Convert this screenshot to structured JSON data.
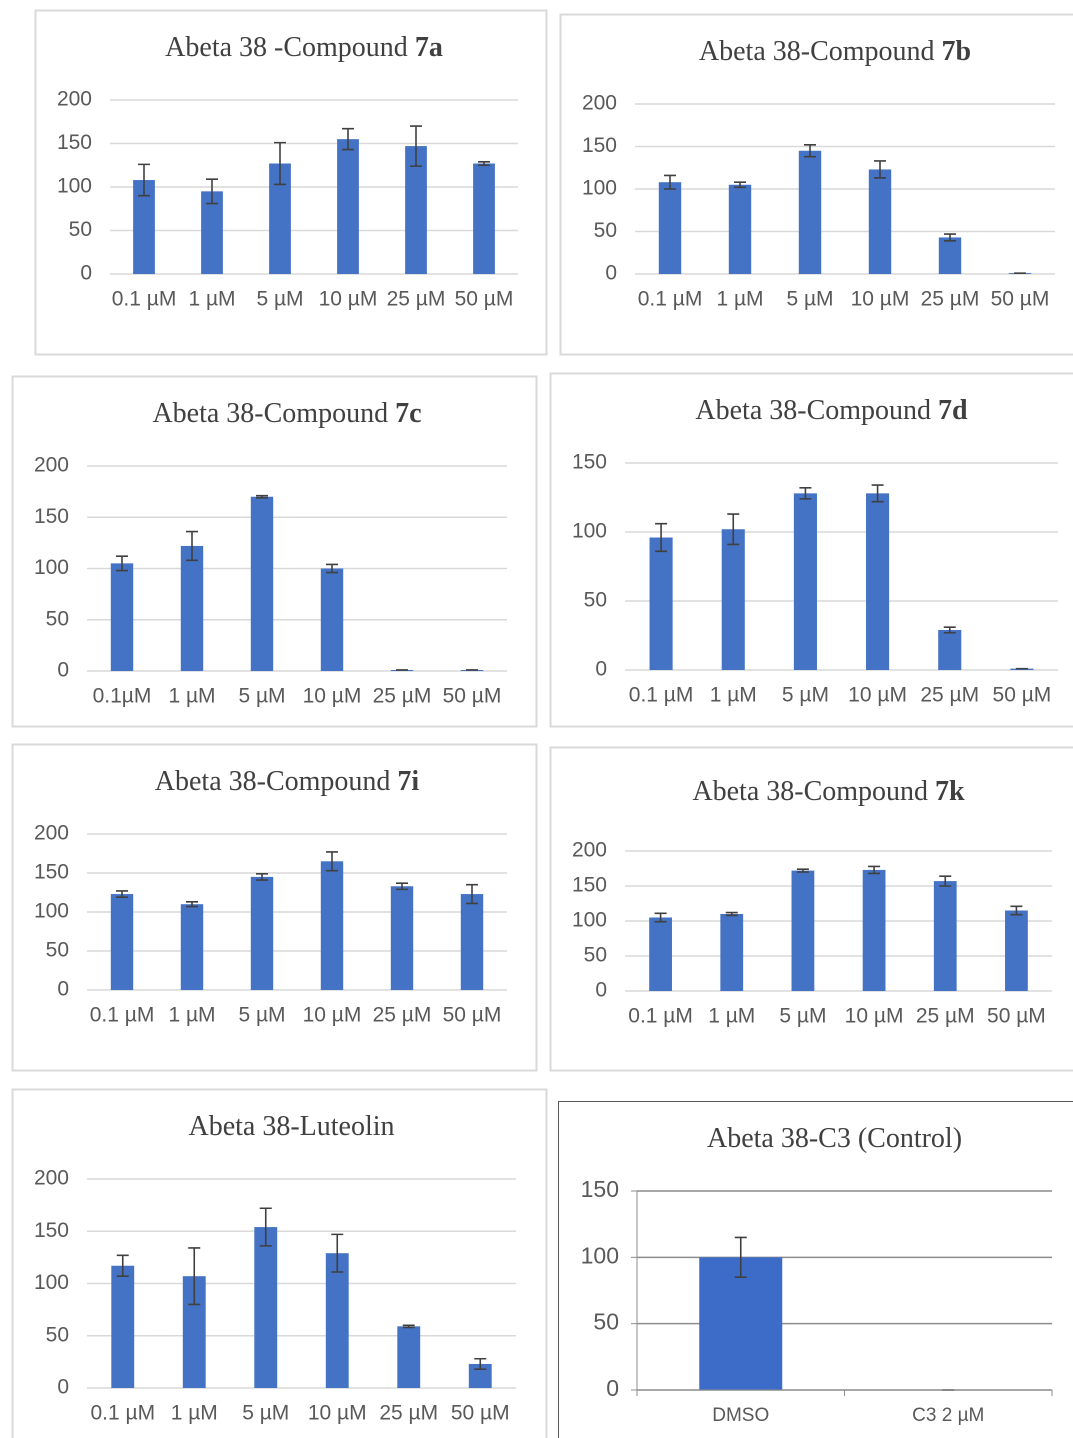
{
  "chart_data": [
    {
      "type": "bar",
      "title": "Abeta 38 -Compound",
      "title_suffix": "7a",
      "categories": [
        "0.1 µM",
        "1 µM",
        "5 µM",
        "10 µM",
        "25 µM",
        "50 µM"
      ],
      "values": [
        108,
        95,
        127,
        155,
        147,
        127
      ],
      "errors": [
        18,
        14,
        24,
        12,
        23,
        2
      ],
      "color": "#4472c4",
      "ylim": [
        0,
        200
      ],
      "yticks": [
        0,
        50,
        100,
        150,
        200
      ],
      "grid": true
    },
    {
      "type": "bar",
      "title": "Abeta 38-Compound",
      "title_suffix": "7b",
      "categories": [
        "0.1 µM",
        "1 µM",
        "5 µM",
        "10 µM",
        "25 µM",
        "50 µM"
      ],
      "values": [
        108,
        105,
        145,
        123,
        43,
        1
      ],
      "errors": [
        8,
        3,
        7,
        10,
        4,
        0
      ],
      "color": "#4472c4",
      "ylim": [
        0,
        200
      ],
      "yticks": [
        0,
        50,
        100,
        150,
        200
      ],
      "grid": true
    },
    {
      "type": "bar",
      "title": "Abeta 38-Compound",
      "title_suffix": "7c",
      "categories": [
        "0.1µM",
        "1 µM",
        "5 µM",
        "10 µM",
        "25 µM",
        "50 µM"
      ],
      "values": [
        105,
        122,
        170,
        100,
        1,
        1
      ],
      "errors": [
        7,
        14,
        1,
        4,
        0,
        0
      ],
      "color": "#4472c4",
      "ylim": [
        0,
        200
      ],
      "yticks": [
        0,
        50,
        100,
        150,
        200
      ],
      "grid": true
    },
    {
      "type": "bar",
      "title": "Abeta 38-Compound",
      "title_suffix": "7d",
      "categories": [
        "0.1 µM",
        "1 µM",
        "5 µM",
        "10 µM",
        "25 µM",
        "50 µM"
      ],
      "values": [
        96,
        102,
        128,
        128,
        29,
        1
      ],
      "errors": [
        10,
        11,
        4,
        6,
        2,
        0
      ],
      "color": "#4472c4",
      "ylim": [
        0,
        150
      ],
      "yticks": [
        0,
        50,
        100,
        150
      ],
      "grid": true
    },
    {
      "type": "bar",
      "title": "Abeta 38-Compound",
      "title_suffix": "7i",
      "categories": [
        "0.1 µM",
        "1 µM",
        "5 µM",
        "10 µM",
        "25 µM",
        "50 µM"
      ],
      "values": [
        123,
        110,
        145,
        165,
        133,
        123
      ],
      "errors": [
        4,
        3,
        4,
        12,
        4,
        12
      ],
      "color": "#4472c4",
      "ylim": [
        0,
        200
      ],
      "yticks": [
        0,
        50,
        100,
        150,
        200
      ],
      "grid": true
    },
    {
      "type": "bar",
      "title": "Abeta 38-Compound",
      "title_suffix": "7k",
      "categories": [
        "0.1 µM",
        "1 µM",
        "5 µM",
        "10 µM",
        "25 µM",
        "50 µM"
      ],
      "values": [
        105,
        110,
        172,
        173,
        157,
        115
      ],
      "errors": [
        6,
        2,
        2,
        5,
        7,
        6
      ],
      "color": "#4472c4",
      "ylim": [
        0,
        200
      ],
      "yticks": [
        0,
        50,
        100,
        150,
        200
      ],
      "grid": true
    },
    {
      "type": "bar",
      "title": "Abeta 38-Luteolin",
      "categories": [
        "0.1 µM",
        "1 µM",
        "5 µM",
        "10 µM",
        "25 µM",
        "50 µM"
      ],
      "values": [
        117,
        107,
        154,
        129,
        59,
        23
      ],
      "errors": [
        10,
        27,
        18,
        18,
        1,
        5
      ],
      "color": "#4472c4",
      "ylim": [
        0,
        200
      ],
      "yticks": [
        0,
        50,
        100,
        150,
        200
      ],
      "grid": true
    },
    {
      "type": "bar",
      "title": "Abeta 38-C3  (Control)",
      "categories": [
        "DMSO",
        "C3 2 µM"
      ],
      "values": [
        100,
        0
      ],
      "errors": [
        15,
        0
      ],
      "color": "#3d6cc8",
      "ylim": [
        0,
        150
      ],
      "yticks": [
        0,
        50,
        100,
        150
      ],
      "grid": true
    }
  ]
}
